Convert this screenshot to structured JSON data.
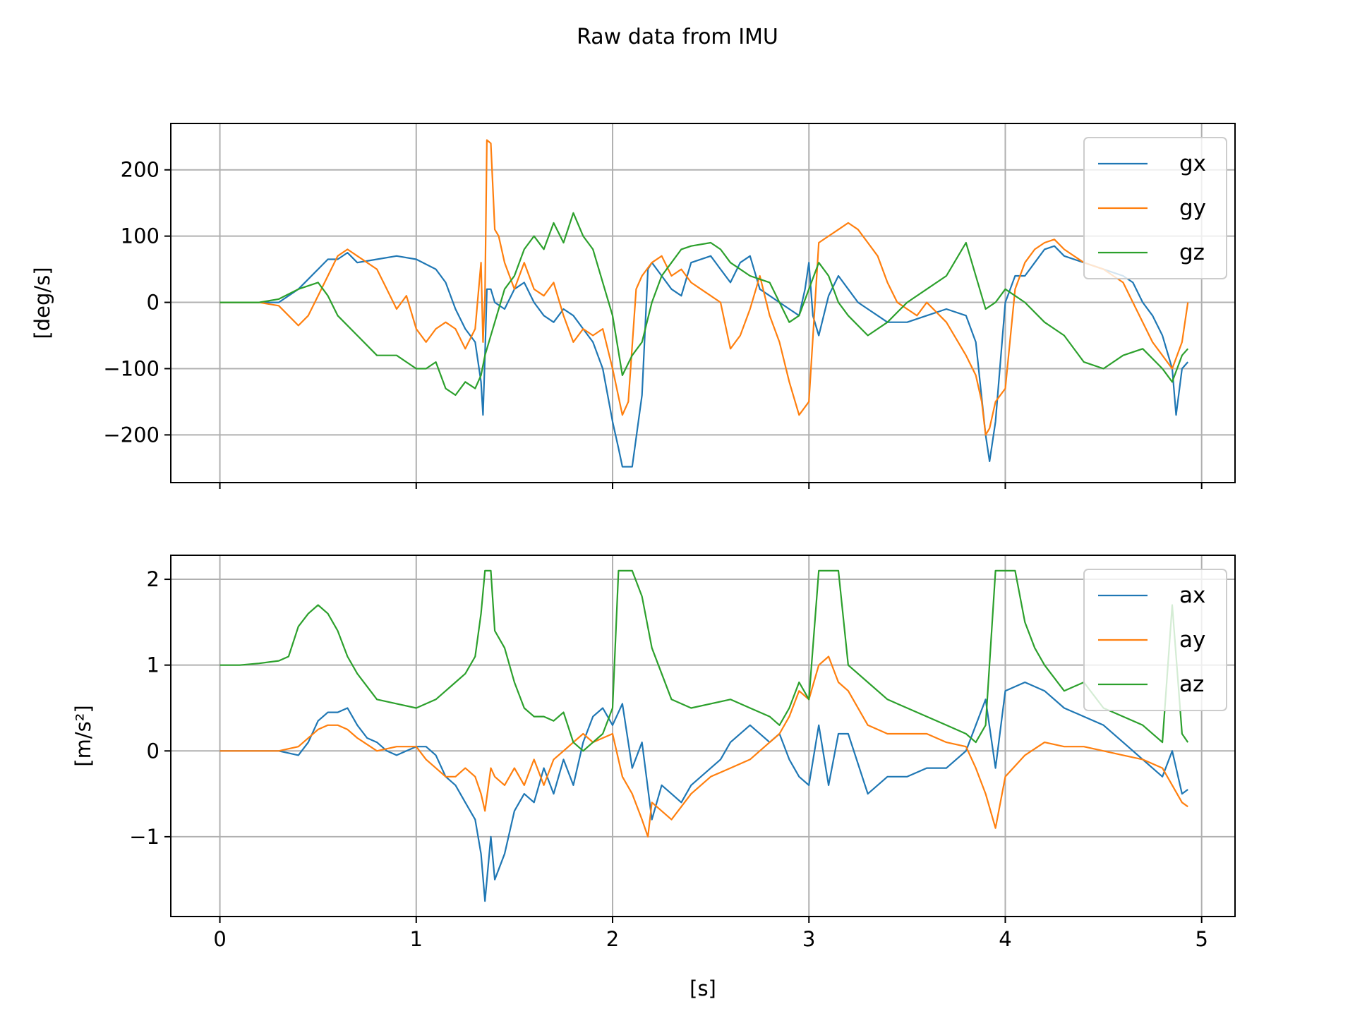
{
  "figure": {
    "title": "Raw data from IMU"
  },
  "chart_data": [
    {
      "type": "line",
      "title": "",
      "xlabel": "",
      "ylabel": "[deg/s]",
      "xlim": [
        -0.25,
        5.17
      ],
      "ylim": [
        -272,
        270
      ],
      "xticks": [
        0,
        1,
        2,
        3,
        4,
        5
      ],
      "yticks": [
        -200,
        -100,
        0,
        100,
        200
      ],
      "ytick_labels": [
        "−200",
        "−100",
        "0",
        "100",
        "200"
      ],
      "grid": true,
      "legend": "top-right",
      "series": [
        {
          "name": "gx",
          "color": "#1f77b4",
          "x": [
            0,
            0.1,
            0.2,
            0.3,
            0.4,
            0.5,
            0.55,
            0.6,
            0.65,
            0.7,
            0.8,
            0.9,
            1.0,
            1.1,
            1.15,
            1.2,
            1.25,
            1.3,
            1.33,
            1.34,
            1.35,
            1.36,
            1.38,
            1.4,
            1.45,
            1.5,
            1.55,
            1.6,
            1.65,
            1.7,
            1.75,
            1.8,
            1.85,
            1.9,
            1.95,
            2.0,
            2.03,
            2.05,
            2.1,
            2.15,
            2.18,
            2.2,
            2.25,
            2.3,
            2.35,
            2.4,
            2.5,
            2.55,
            2.6,
            2.65,
            2.7,
            2.75,
            2.8,
            2.85,
            2.9,
            2.95,
            2.98,
            3.0,
            3.02,
            3.05,
            3.1,
            3.15,
            3.2,
            3.25,
            3.3,
            3.35,
            3.4,
            3.5,
            3.6,
            3.7,
            3.8,
            3.85,
            3.9,
            3.92,
            3.95,
            4.0,
            4.05,
            4.1,
            4.15,
            4.2,
            4.25,
            4.3,
            4.4,
            4.5,
            4.55,
            4.6,
            4.65,
            4.7,
            4.75,
            4.8,
            4.85,
            4.87,
            4.9,
            4.93
          ],
          "values": [
            0,
            0,
            0,
            0,
            20,
            50,
            65,
            65,
            75,
            60,
            65,
            70,
            65,
            50,
            30,
            -10,
            -40,
            -60,
            -120,
            -170,
            -80,
            20,
            20,
            0,
            -10,
            20,
            30,
            0,
            -20,
            -30,
            -10,
            -20,
            -40,
            -60,
            -100,
            -180,
            -220,
            -248,
            -248,
            -140,
            50,
            60,
            40,
            20,
            10,
            60,
            70,
            50,
            30,
            60,
            70,
            20,
            10,
            0,
            -10,
            -20,
            20,
            60,
            -20,
            -50,
            10,
            40,
            20,
            0,
            -10,
            -20,
            -30,
            -30,
            -20,
            -10,
            -20,
            -60,
            -200,
            -240,
            -180,
            0,
            40,
            40,
            60,
            80,
            85,
            70,
            60,
            50,
            45,
            40,
            30,
            0,
            -20,
            -50,
            -100,
            -170,
            -100,
            -90
          ]
        },
        {
          "name": "gy",
          "color": "#ff7f0e",
          "x": [
            0,
            0.1,
            0.2,
            0.3,
            0.4,
            0.45,
            0.5,
            0.55,
            0.6,
            0.65,
            0.7,
            0.75,
            0.8,
            0.85,
            0.9,
            0.95,
            1.0,
            1.05,
            1.1,
            1.15,
            1.2,
            1.25,
            1.3,
            1.33,
            1.34,
            1.35,
            1.36,
            1.38,
            1.4,
            1.42,
            1.45,
            1.5,
            1.55,
            1.6,
            1.65,
            1.7,
            1.75,
            1.8,
            1.85,
            1.9,
            1.95,
            2.0,
            2.05,
            2.08,
            2.12,
            2.15,
            2.2,
            2.25,
            2.3,
            2.35,
            2.4,
            2.45,
            2.5,
            2.55,
            2.6,
            2.65,
            2.7,
            2.75,
            2.8,
            2.85,
            2.9,
            2.95,
            3.0,
            3.05,
            3.1,
            3.15,
            3.2,
            3.25,
            3.3,
            3.35,
            3.4,
            3.45,
            3.5,
            3.55,
            3.6,
            3.7,
            3.8,
            3.85,
            3.88,
            3.9,
            3.92,
            3.95,
            4.0,
            4.05,
            4.1,
            4.15,
            4.2,
            4.25,
            4.3,
            4.4,
            4.5,
            4.55,
            4.6,
            4.65,
            4.7,
            4.75,
            4.8,
            4.85,
            4.9,
            4.93
          ],
          "values": [
            0,
            0,
            0,
            -5,
            -35,
            -20,
            10,
            40,
            70,
            80,
            70,
            60,
            50,
            20,
            -10,
            10,
            -40,
            -60,
            -40,
            -30,
            -40,
            -70,
            -40,
            60,
            -60,
            10,
            245,
            240,
            110,
            100,
            60,
            20,
            60,
            20,
            10,
            30,
            -20,
            -60,
            -40,
            -50,
            -40,
            -100,
            -170,
            -150,
            20,
            40,
            60,
            70,
            40,
            50,
            30,
            20,
            10,
            0,
            -70,
            -50,
            -10,
            40,
            -20,
            -60,
            -120,
            -170,
            -150,
            90,
            100,
            110,
            120,
            110,
            90,
            70,
            30,
            0,
            -10,
            -20,
            0,
            -30,
            -80,
            -110,
            -150,
            -200,
            -190,
            -150,
            -130,
            20,
            60,
            80,
            90,
            95,
            80,
            60,
            50,
            40,
            30,
            0,
            -30,
            -60,
            -80,
            -100,
            -60,
            0
          ]
        },
        {
          "name": "gz",
          "color": "#2ca02c",
          "x": [
            0,
            0.1,
            0.2,
            0.3,
            0.4,
            0.5,
            0.55,
            0.6,
            0.7,
            0.8,
            0.9,
            1.0,
            1.05,
            1.1,
            1.15,
            1.2,
            1.25,
            1.3,
            1.33,
            1.35,
            1.38,
            1.4,
            1.45,
            1.5,
            1.55,
            1.6,
            1.65,
            1.7,
            1.75,
            1.8,
            1.85,
            1.9,
            1.95,
            2.0,
            2.05,
            2.1,
            2.15,
            2.2,
            2.25,
            2.3,
            2.35,
            2.4,
            2.5,
            2.55,
            2.6,
            2.7,
            2.8,
            2.85,
            2.9,
            2.95,
            3.0,
            3.05,
            3.1,
            3.15,
            3.2,
            3.3,
            3.4,
            3.5,
            3.6,
            3.7,
            3.8,
            3.85,
            3.9,
            3.95,
            4.0,
            4.1,
            4.2,
            4.3,
            4.4,
            4.5,
            4.6,
            4.7,
            4.8,
            4.85,
            4.9,
            4.93
          ],
          "values": [
            0,
            0,
            0,
            5,
            20,
            30,
            10,
            -20,
            -50,
            -80,
            -80,
            -100,
            -100,
            -90,
            -130,
            -140,
            -120,
            -130,
            -110,
            -80,
            -50,
            -30,
            20,
            40,
            80,
            100,
            80,
            120,
            90,
            135,
            100,
            80,
            30,
            -20,
            -110,
            -80,
            -60,
            0,
            40,
            60,
            80,
            85,
            90,
            80,
            60,
            40,
            30,
            0,
            -30,
            -20,
            20,
            60,
            40,
            0,
            -20,
            -50,
            -30,
            0,
            20,
            40,
            90,
            40,
            -10,
            0,
            20,
            0,
            -30,
            -50,
            -90,
            -100,
            -80,
            -70,
            -100,
            -120,
            -80,
            -70
          ]
        }
      ]
    },
    {
      "type": "line",
      "title": "",
      "xlabel": "[s]",
      "ylabel": "[m/s²]",
      "xlim": [
        -0.25,
        5.17
      ],
      "ylim": [
        -1.93,
        2.28
      ],
      "xticks": [
        0,
        1,
        2,
        3,
        4,
        5
      ],
      "yticks": [
        -1,
        0,
        1,
        2
      ],
      "ytick_labels": [
        "−1",
        "0",
        "1",
        "2"
      ],
      "grid": true,
      "legend": "top-right",
      "series": [
        {
          "name": "ax",
          "color": "#1f77b4",
          "x": [
            0,
            0.1,
            0.2,
            0.3,
            0.4,
            0.45,
            0.5,
            0.55,
            0.6,
            0.65,
            0.7,
            0.75,
            0.8,
            0.85,
            0.9,
            0.95,
            1.0,
            1.05,
            1.1,
            1.15,
            1.2,
            1.25,
            1.3,
            1.33,
            1.35,
            1.38,
            1.4,
            1.45,
            1.5,
            1.55,
            1.6,
            1.65,
            1.7,
            1.75,
            1.8,
            1.85,
            1.9,
            1.95,
            2.0,
            2.05,
            2.1,
            2.15,
            2.2,
            2.25,
            2.3,
            2.35,
            2.4,
            2.5,
            2.55,
            2.6,
            2.7,
            2.8,
            2.85,
            2.9,
            2.95,
            3.0,
            3.05,
            3.1,
            3.15,
            3.2,
            3.3,
            3.4,
            3.5,
            3.6,
            3.7,
            3.8,
            3.85,
            3.9,
            3.95,
            4.0,
            4.1,
            4.2,
            4.3,
            4.4,
            4.5,
            4.6,
            4.7,
            4.8,
            4.85,
            4.9,
            4.93
          ],
          "values": [
            0,
            0,
            0,
            0,
            -0.05,
            0.1,
            0.35,
            0.45,
            0.45,
            0.5,
            0.3,
            0.15,
            0.1,
            0,
            -0.05,
            0,
            0.05,
            0.05,
            -0.05,
            -0.3,
            -0.4,
            -0.6,
            -0.8,
            -1.2,
            -1.75,
            -1.0,
            -1.5,
            -1.2,
            -0.7,
            -0.5,
            -0.6,
            -0.2,
            -0.5,
            -0.1,
            -0.4,
            0.1,
            0.4,
            0.5,
            0.3,
            0.55,
            -0.2,
            0.1,
            -0.8,
            -0.4,
            -0.5,
            -0.6,
            -0.4,
            -0.2,
            -0.1,
            0.1,
            0.3,
            0.1,
            0.2,
            -0.1,
            -0.3,
            -0.4,
            0.3,
            -0.4,
            0.2,
            0.2,
            -0.5,
            -0.3,
            -0.3,
            -0.2,
            -0.2,
            0,
            0.3,
            0.6,
            -0.2,
            0.7,
            0.8,
            0.7,
            0.5,
            0.4,
            0.3,
            0.1,
            -0.1,
            -0.3,
            0,
            -0.5,
            -0.45
          ]
        },
        {
          "name": "ay",
          "color": "#ff7f0e",
          "x": [
            0,
            0.1,
            0.2,
            0.3,
            0.4,
            0.5,
            0.55,
            0.6,
            0.65,
            0.7,
            0.8,
            0.9,
            1.0,
            1.05,
            1.1,
            1.15,
            1.2,
            1.25,
            1.3,
            1.33,
            1.35,
            1.38,
            1.4,
            1.45,
            1.5,
            1.55,
            1.6,
            1.65,
            1.7,
            1.75,
            1.8,
            1.85,
            1.9,
            1.95,
            2.0,
            2.05,
            2.1,
            2.15,
            2.18,
            2.2,
            2.25,
            2.3,
            2.4,
            2.5,
            2.6,
            2.7,
            2.8,
            2.85,
            2.9,
            2.95,
            3.0,
            3.05,
            3.1,
            3.15,
            3.2,
            3.3,
            3.4,
            3.5,
            3.6,
            3.7,
            3.8,
            3.85,
            3.9,
            3.95,
            4.0,
            4.1,
            4.2,
            4.3,
            4.4,
            4.5,
            4.6,
            4.7,
            4.8,
            4.85,
            4.9,
            4.93
          ],
          "values": [
            0,
            0,
            0,
            0,
            0.05,
            0.25,
            0.3,
            0.3,
            0.25,
            0.15,
            0,
            0.05,
            0.05,
            -0.1,
            -0.2,
            -0.3,
            -0.3,
            -0.2,
            -0.3,
            -0.5,
            -0.7,
            -0.2,
            -0.3,
            -0.4,
            -0.2,
            -0.4,
            -0.1,
            -0.4,
            -0.1,
            0,
            0.1,
            0.2,
            0.1,
            0.15,
            0.2,
            -0.3,
            -0.5,
            -0.8,
            -1.0,
            -0.6,
            -0.7,
            -0.8,
            -0.5,
            -0.3,
            -0.2,
            -0.1,
            0.1,
            0.2,
            0.4,
            0.7,
            0.6,
            1.0,
            1.1,
            0.8,
            0.7,
            0.3,
            0.2,
            0.2,
            0.2,
            0.1,
            0.05,
            -0.2,
            -0.5,
            -0.9,
            -0.3,
            -0.05,
            0.1,
            0.05,
            0.05,
            0,
            -0.05,
            -0.1,
            -0.2,
            -0.4,
            -0.6,
            -0.65
          ]
        },
        {
          "name": "az",
          "color": "#2ca02c",
          "x": [
            0,
            0.1,
            0.2,
            0.3,
            0.35,
            0.4,
            0.45,
            0.5,
            0.55,
            0.6,
            0.65,
            0.7,
            0.75,
            0.8,
            0.9,
            1.0,
            1.05,
            1.1,
            1.15,
            1.2,
            1.25,
            1.3,
            1.33,
            1.35,
            1.38,
            1.4,
            1.45,
            1.5,
            1.55,
            1.6,
            1.65,
            1.7,
            1.75,
            1.8,
            1.85,
            1.9,
            1.95,
            2.0,
            2.03,
            2.05,
            2.1,
            2.15,
            2.2,
            2.25,
            2.3,
            2.4,
            2.5,
            2.6,
            2.7,
            2.8,
            2.85,
            2.9,
            2.95,
            3.0,
            3.05,
            3.1,
            3.15,
            3.2,
            3.3,
            3.4,
            3.5,
            3.6,
            3.7,
            3.8,
            3.85,
            3.9,
            3.95,
            4.0,
            4.05,
            4.1,
            4.15,
            4.2,
            4.3,
            4.4,
            4.5,
            4.6,
            4.7,
            4.8,
            4.85,
            4.9,
            4.93
          ],
          "values": [
            1.0,
            1.0,
            1.02,
            1.05,
            1.1,
            1.45,
            1.6,
            1.7,
            1.6,
            1.4,
            1.1,
            0.9,
            0.75,
            0.6,
            0.55,
            0.5,
            0.55,
            0.6,
            0.7,
            0.8,
            0.9,
            1.1,
            1.6,
            2.1,
            2.1,
            1.4,
            1.2,
            0.8,
            0.5,
            0.4,
            0.4,
            0.35,
            0.45,
            0.1,
            0,
            0.1,
            0.2,
            0.5,
            2.1,
            2.1,
            2.1,
            1.8,
            1.2,
            0.9,
            0.6,
            0.5,
            0.55,
            0.6,
            0.5,
            0.4,
            0.3,
            0.5,
            0.8,
            0.6,
            2.1,
            2.1,
            2.1,
            1.0,
            0.8,
            0.6,
            0.5,
            0.4,
            0.3,
            0.2,
            0.1,
            0.3,
            2.1,
            2.1,
            2.1,
            1.5,
            1.2,
            1.0,
            0.7,
            0.8,
            0.5,
            0.4,
            0.3,
            0.1,
            1.7,
            0.2,
            0.1
          ]
        }
      ]
    }
  ]
}
